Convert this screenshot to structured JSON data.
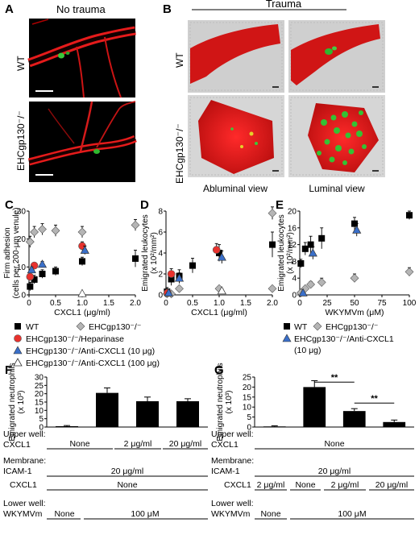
{
  "panels": {
    "A": {
      "letter": "A",
      "header": "No trauma",
      "row_labels": [
        "WT",
        "EHCgp130⁻/⁻"
      ]
    },
    "B": {
      "letter": "B",
      "header": "Trauma",
      "row_labels": [
        "WT",
        "EHCgp130⁻/⁻"
      ],
      "captions": [
        "Abluminal view",
        "Luminal view"
      ]
    },
    "C": {
      "letter": "C"
    },
    "D": {
      "letter": "D"
    },
    "E": {
      "letter": "E"
    },
    "F": {
      "letter": "F"
    },
    "G": {
      "letter": "G"
    }
  },
  "legend_CD": {
    "items": [
      {
        "label": "WT",
        "marker": "square",
        "color": "#000000"
      },
      {
        "label": "EHCgp130⁻/⁻",
        "marker": "diamond",
        "color": "#b5b5b5"
      },
      {
        "label": "EHCgp130⁻/⁻/Heparinase",
        "marker": "circle",
        "color": "#e8322e"
      },
      {
        "label": "EHCgp130⁻/⁻/Anti-CXCL1 (10 μg)",
        "marker": "triangle",
        "color": "#3a6fc9"
      },
      {
        "label": "EHCgp130⁻/⁻/Anti-CXCL1 (100 μg)",
        "marker": "triangle-open",
        "color": "#ffffff"
      }
    ]
  },
  "legend_E": {
    "items": [
      {
        "label": "WT",
        "marker": "square",
        "color": "#000000"
      },
      {
        "label": "EHCgp130⁻/⁻",
        "marker": "diamond",
        "color": "#b5b5b5"
      },
      {
        "label": "EHCgp130⁻/⁻/Anti-CXCL1",
        "marker": "triangle",
        "color": "#3a6fc9"
      },
      {
        "label": "(10 μg)",
        "marker": "",
        "color": ""
      }
    ]
  },
  "table_F": {
    "rows": [
      {
        "label": "Upper well:",
        "sub": "CXCL1",
        "cells": [
          "None",
          "2 μg/ml",
          "20 μg/ml"
        ]
      },
      {
        "label": "Membrane:",
        "sub": "ICAM-1",
        "cells": [
          "20 μg/ml"
        ]
      },
      {
        "label": "",
        "sub": "CXCL1",
        "cells": [
          "None"
        ]
      },
      {
        "label": "Lower well:",
        "sub": "WKYMVm",
        "cells": [
          "None",
          "100 μM"
        ]
      }
    ]
  },
  "table_G": {
    "rows": [
      {
        "label": "Upper well:",
        "sub": "CXCL1",
        "cells": [
          "None"
        ]
      },
      {
        "label": "Membrane:",
        "sub": "ICAM-1",
        "cells": [
          "20 μg/ml"
        ]
      },
      {
        "label": "",
        "sub": "CXCL1",
        "cells": [
          "2 μg/ml",
          "None",
          "2 μg/ml",
          "20 μg/ml"
        ]
      },
      {
        "label": "Lower well:",
        "sub": "WKYMVm",
        "cells": [
          "None",
          "100 μM"
        ]
      }
    ]
  },
  "chart_data": [
    {
      "id": "C",
      "type": "scatter",
      "xlabel": "CXCL1 (μg/ml)",
      "ylabel": "Firm adhesion",
      "ylabel2": "(cells per 200-μm venule)",
      "xlim": [
        0,
        2.0
      ],
      "ylim": [
        0,
        30
      ],
      "xticks": [
        0,
        0.5,
        1.0,
        1.5,
        2.0
      ],
      "xtick_labels": [
        "0",
        "0.5",
        "1.0",
        "1.5",
        "2.0"
      ],
      "yticks": [
        0,
        10,
        20,
        30
      ],
      "ytick_labels": [
        "0",
        "10",
        "20",
        "30"
      ],
      "series": [
        {
          "name": "WT",
          "marker": "square",
          "color": "#000000",
          "points": [
            {
              "x": 0.02,
              "y": 3,
              "err": 1.5
            },
            {
              "x": 0.1,
              "y": 5.5,
              "err": 1.5
            },
            {
              "x": 0.25,
              "y": 7.5,
              "err": 1.5
            },
            {
              "x": 0.5,
              "y": 8.5,
              "err": 1.5
            },
            {
              "x": 1.0,
              "y": 12,
              "err": 1.5
            },
            {
              "x": 2.0,
              "y": 13,
              "err": 3
            }
          ]
        },
        {
          "name": "EHCgp130⁻/⁻",
          "marker": "diamond",
          "color": "#b5b5b5",
          "points": [
            {
              "x": 0.02,
              "y": 19,
              "err": 2
            },
            {
              "x": 0.1,
              "y": 22.5,
              "err": 2
            },
            {
              "x": 0.25,
              "y": 23.5,
              "err": 2
            },
            {
              "x": 0.5,
              "y": 23,
              "err": 2
            },
            {
              "x": 1.0,
              "y": 22.5,
              "err": 2
            },
            {
              "x": 2.0,
              "y": 25,
              "err": 2
            }
          ]
        },
        {
          "name": "EHCgp130⁻/⁻/Heparinase",
          "marker": "circle",
          "color": "#e8322e",
          "points": [
            {
              "x": 0.02,
              "y": 6.5,
              "err": 1
            },
            {
              "x": 0.1,
              "y": 10.5,
              "err": 1
            },
            {
              "x": 1.0,
              "y": 17.5,
              "err": 1.5
            }
          ]
        },
        {
          "name": "EHCgp130⁻/⁻/Anti-CXCL1 (10 μg)",
          "marker": "triangle",
          "color": "#3a6fc9",
          "points": [
            {
              "x": 0.05,
              "y": 9,
              "err": 1
            },
            {
              "x": 0.25,
              "y": 11,
              "err": 1
            },
            {
              "x": 1.05,
              "y": 16,
              "err": 1.5
            }
          ]
        },
        {
          "name": "EHCgp130⁻/⁻/Anti-CXCL1 (100 μg)",
          "marker": "triangle-open",
          "color": "#ffffff",
          "points": [
            {
              "x": 1.0,
              "y": 0.5,
              "err": 0
            }
          ]
        }
      ]
    },
    {
      "id": "D",
      "type": "scatter",
      "xlabel": "CXCL1 (μg/ml)",
      "ylabel": "Emigrated leukocytes",
      "ylabel2": "(x 10²/mm²)",
      "xlim": [
        0,
        2.0
      ],
      "ylim": [
        0,
        8
      ],
      "xticks": [
        0,
        0.5,
        1.0,
        1.5,
        2.0
      ],
      "xtick_labels": [
        "0",
        "0.5",
        "1.0",
        "1.5",
        "2.0"
      ],
      "yticks": [
        0,
        2,
        4,
        6,
        8
      ],
      "ytick_labels": [
        "0",
        "2",
        "4",
        "6",
        "8"
      ],
      "series": [
        {
          "name": "WT",
          "marker": "square",
          "color": "#000000",
          "points": [
            {
              "x": 0.02,
              "y": 0.3,
              "err": 0.4
            },
            {
              "x": 0.1,
              "y": 1.5,
              "err": 0.6
            },
            {
              "x": 0.25,
              "y": 1.8,
              "err": 0.6
            },
            {
              "x": 0.5,
              "y": 2.8,
              "err": 0.7
            },
            {
              "x": 1.0,
              "y": 4.0,
              "err": 0.8
            },
            {
              "x": 2.0,
              "y": 4.8,
              "err": 1.2
            }
          ]
        },
        {
          "name": "EHCgp130⁻/⁻",
          "marker": "diamond",
          "color": "#b5b5b5",
          "points": [
            {
              "x": 0.02,
              "y": 0.1,
              "err": 0
            },
            {
              "x": 0.1,
              "y": 0.1,
              "err": 0
            },
            {
              "x": 0.25,
              "y": 0.6,
              "err": 0.2
            },
            {
              "x": 1.0,
              "y": 0.6,
              "err": 0.2
            },
            {
              "x": 2.0,
              "y": 0.6,
              "err": 0.2
            },
            {
              "x": 2.0,
              "y": 7.8,
              "err": 0.6
            }
          ]
        },
        {
          "name": "EHCgp130⁻/⁻/Heparinase",
          "marker": "circle",
          "color": "#e8322e",
          "points": [
            {
              "x": 0.03,
              "y": 0.2,
              "err": 0.1
            },
            {
              "x": 0.1,
              "y": 2.0,
              "err": 0.5
            },
            {
              "x": 0.95,
              "y": 4.3,
              "err": 0.6
            }
          ]
        },
        {
          "name": "EHCgp130⁻/⁻/Anti-CXCL1 (10 μg)",
          "marker": "triangle",
          "color": "#3a6fc9",
          "points": [
            {
              "x": 0.05,
              "y": 0.2,
              "err": 0.1
            },
            {
              "x": 0.25,
              "y": 1.6,
              "err": 0.5
            },
            {
              "x": 1.05,
              "y": 3.6,
              "err": 0.6
            }
          ]
        },
        {
          "name": "EHCgp130⁻/⁻/Anti-CXCL1 (100 μg)",
          "marker": "triangle-open",
          "color": "#ffffff",
          "points": [
            {
              "x": 1.05,
              "y": 0.4,
              "err": 0
            }
          ]
        }
      ]
    },
    {
      "id": "E",
      "type": "scatter",
      "xlabel": "WKYMVm (μM)",
      "ylabel": "Emigrated leukocytes",
      "ylabel2": "(x 10²/mm²)",
      "xlim": [
        0,
        100
      ],
      "ylim": [
        0,
        20
      ],
      "xticks": [
        0,
        25,
        50,
        75,
        100
      ],
      "xtick_labels": [
        "0",
        "25",
        "50",
        "75",
        "100"
      ],
      "yticks": [
        0,
        4,
        8,
        12,
        16,
        20
      ],
      "ytick_labels": [
        "0",
        "4",
        "8",
        "12",
        "16",
        "20"
      ],
      "series": [
        {
          "name": "WT",
          "marker": "square",
          "color": "#000000",
          "points": [
            {
              "x": 1,
              "y": 7.5,
              "err": 1
            },
            {
              "x": 5,
              "y": 11,
              "err": 1.5
            },
            {
              "x": 10,
              "y": 12,
              "err": 2
            },
            {
              "x": 20,
              "y": 13.5,
              "err": 2.5
            },
            {
              "x": 50,
              "y": 17,
              "err": 1.5
            },
            {
              "x": 100,
              "y": 19,
              "err": 1
            }
          ]
        },
        {
          "name": "EHCgp130⁻/⁻",
          "marker": "diamond",
          "color": "#b5b5b5",
          "points": [
            {
              "x": 1,
              "y": 0.5,
              "err": 0.3
            },
            {
              "x": 5,
              "y": 1.5,
              "err": 0.5
            },
            {
              "x": 10,
              "y": 2.5,
              "err": 0.7
            },
            {
              "x": 20,
              "y": 3,
              "err": 1
            },
            {
              "x": 50,
              "y": 4,
              "err": 1
            },
            {
              "x": 100,
              "y": 5.5,
              "err": 1
            }
          ]
        },
        {
          "name": "EHCgp130⁻/⁻/Anti-CXCL1 (10 μg)",
          "marker": "triangle",
          "color": "#3a6fc9",
          "points": [
            {
              "x": 3,
              "y": 0.5,
              "err": 0.3
            },
            {
              "x": 12,
              "y": 10,
              "err": 1.5
            },
            {
              "x": 52,
              "y": 15.5,
              "err": 1.5
            }
          ]
        }
      ]
    },
    {
      "id": "F",
      "type": "bar",
      "ylabel": "Emigrated neutrophils",
      "ylabel2": "(x 10³)",
      "ylim": [
        0,
        30
      ],
      "yticks": [
        0,
        5,
        10,
        15,
        20,
        25,
        30
      ],
      "ytick_labels": [
        "0",
        "5",
        "10",
        "15",
        "20",
        "25",
        "30"
      ],
      "categories": [
        "1",
        "2",
        "3",
        "4"
      ],
      "values": [
        0.5,
        20.5,
        15.5,
        15.5
      ],
      "errors": [
        0.4,
        3,
        2.5,
        1.5
      ],
      "annotations": []
    },
    {
      "id": "G",
      "type": "bar",
      "ylabel": "Emigrated neutrophils",
      "ylabel2": "(x 10³)",
      "ylim": [
        0,
        25
      ],
      "yticks": [
        0,
        5,
        10,
        15,
        20,
        25
      ],
      "ytick_labels": [
        "0",
        "5",
        "10",
        "15",
        "20",
        "25"
      ],
      "categories": [
        "1",
        "2",
        "3",
        "4"
      ],
      "values": [
        0.3,
        20,
        8,
        2.5
      ],
      "errors": [
        0.3,
        3.2,
        1.2,
        1
      ],
      "annotations": [
        {
          "from": 1,
          "to": 2,
          "y": 22.5,
          "text": "**"
        },
        {
          "from": 2,
          "to": 3,
          "y": 12,
          "text": "**"
        }
      ]
    }
  ]
}
